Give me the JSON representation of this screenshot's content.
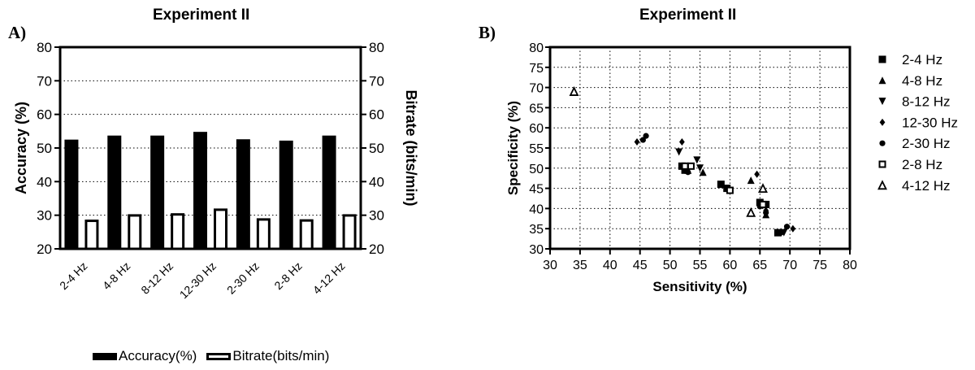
{
  "panel_a": {
    "letter": "A)",
    "chart_data": {
      "type": "bar",
      "title": "Experiment II",
      "categories": [
        "2-4 Hz",
        "4-8 Hz",
        "8-12 Hz",
        "12-30 Hz",
        "2-30 Hz",
        "2-8 Hz",
        "4-12 Hz"
      ],
      "series": [
        {
          "name": "Accuracy(%)",
          "values": [
            52.5,
            53.7,
            53.7,
            54.8,
            52.6,
            52.2,
            53.7
          ],
          "color": "#000000",
          "fill": "solid"
        },
        {
          "name": "Bitrate(bits/min)",
          "values": [
            28.7,
            30.3,
            30.6,
            32.0,
            29.1,
            28.8,
            30.3
          ],
          "color": "#000000",
          "fill": "hollow"
        }
      ],
      "ylabel": "Accuracy (%)",
      "y2label": "Bitrate (bits/min)",
      "ylim": [
        20,
        80
      ],
      "y2lim": [
        20,
        80
      ],
      "yticks": [
        20,
        30,
        40,
        50,
        60,
        70,
        80
      ],
      "grid": "horizontal dotted",
      "legend": "bottom"
    }
  },
  "panel_b": {
    "letter": "B)",
    "chart_data": {
      "type": "scatter",
      "title": "Experiment II",
      "xlabel": "Sensitivity (%)",
      "ylabel": "Specificity (%)",
      "xlim": [
        30,
        80
      ],
      "ylim": [
        30,
        80
      ],
      "xticks": [
        30,
        35,
        40,
        45,
        50,
        55,
        60,
        65,
        70,
        75,
        80
      ],
      "yticks": [
        30,
        35,
        40,
        45,
        50,
        55,
        60,
        65,
        70,
        75,
        80
      ],
      "grid": "dotted",
      "legend": "right",
      "series": [
        {
          "name": "2-4 Hz",
          "marker": "square",
          "points": [
            [
              52,
              50.5
            ],
            [
              52.5,
              49.5
            ],
            [
              58.5,
              46
            ],
            [
              59.5,
              45
            ],
            [
              65,
              41.5
            ],
            [
              66,
              41
            ],
            [
              68,
              34
            ]
          ]
        },
        {
          "name": "4-8 Hz",
          "marker": "triangle-up",
          "points": [
            [
              53,
              49.5
            ],
            [
              55.5,
              49
            ],
            [
              63.5,
              47
            ],
            [
              66,
              38.5
            ]
          ]
        },
        {
          "name": "8-12 Hz",
          "marker": "triangle-down",
          "points": [
            [
              51.5,
              54
            ],
            [
              54.5,
              52
            ],
            [
              55,
              50
            ],
            [
              69,
              34
            ]
          ]
        },
        {
          "name": "12-30 Hz",
          "marker": "diamond",
          "points": [
            [
              44.5,
              56.5
            ],
            [
              52,
              56.5
            ],
            [
              64.5,
              48.5
            ],
            [
              66,
              39.5
            ],
            [
              70.5,
              35
            ]
          ]
        },
        {
          "name": "2-30 Hz",
          "marker": "circle",
          "points": [
            [
              45.5,
              57
            ],
            [
              46,
              58
            ],
            [
              53,
              49
            ],
            [
              65,
              40.5
            ],
            [
              66,
              39
            ],
            [
              68.5,
              34
            ],
            [
              69.5,
              35.5
            ]
          ]
        },
        {
          "name": "2-8 Hz",
          "marker": "square-hollow",
          "points": [
            [
              52.5,
              50.5
            ],
            [
              53.5,
              50.5
            ],
            [
              60,
              44.5
            ],
            [
              65.5,
              41
            ]
          ]
        },
        {
          "name": "4-12 Hz",
          "marker": "triangle-hollow",
          "points": [
            [
              34,
              69
            ],
            [
              65.5,
              45
            ],
            [
              63.5,
              39
            ]
          ]
        }
      ]
    }
  }
}
